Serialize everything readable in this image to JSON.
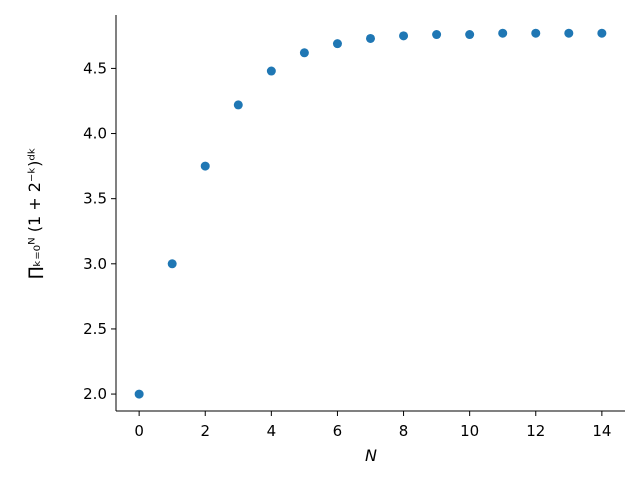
{
  "chart_data": {
    "type": "scatter",
    "x_label": "N",
    "y_label": "∏ₖ₌₀ᴺ (1 + 2⁻ᵏ)ᵈᵏ",
    "x": [
      0,
      1,
      2,
      3,
      4,
      5,
      6,
      7,
      8,
      9,
      10,
      11,
      12,
      13,
      14
    ],
    "series": [
      {
        "color": "#1f77b4",
        "values": [
          2.0,
          3.0,
          3.75,
          4.22,
          4.48,
          4.62,
          4.69,
          4.73,
          4.75,
          4.76,
          4.76,
          4.77,
          4.77,
          4.77,
          4.77
        ]
      }
    ],
    "xlim": [
      -0.7,
      14.7
    ],
    "ylim": [
      1.87,
      4.91
    ],
    "xticks": [
      0,
      2,
      4,
      6,
      8,
      10,
      12,
      14
    ],
    "yticks": [
      {
        "value": 2,
        "label": "2.0"
      },
      {
        "value": 2.5,
        "label": "2.5"
      },
      {
        "value": 3,
        "label": "3.0"
      },
      {
        "value": 3.5,
        "label": "3.5"
      },
      {
        "value": 4,
        "label": "4.0"
      },
      {
        "value": 4.5,
        "label": "4.5"
      }
    ],
    "grid": false
  }
}
